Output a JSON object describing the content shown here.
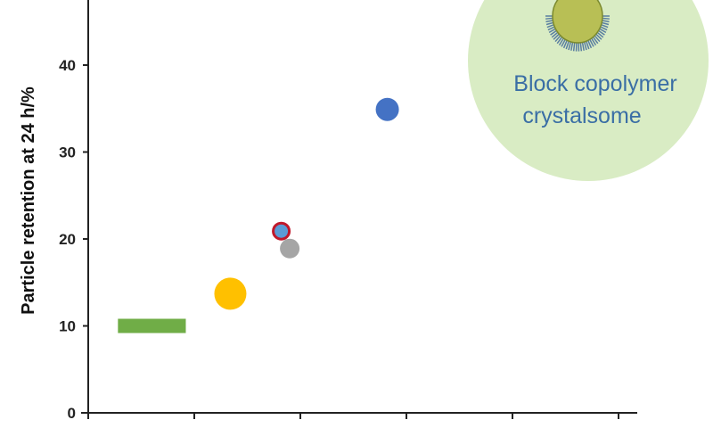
{
  "chart_data": {
    "type": "scatter",
    "title": "",
    "xlabel": "",
    "ylabel": "Particle retention at 24 h/%",
    "xlim": [
      0,
      27
    ],
    "ylim": [
      0,
      40
    ],
    "xticks": [
      0,
      5,
      10,
      15,
      20,
      25
    ],
    "yticks": [
      0,
      10,
      20,
      30,
      40
    ],
    "grid": false,
    "points": [
      {
        "x": 14.1,
        "y": 34.9,
        "color": "#4472c4",
        "shape": "circle"
      },
      {
        "x": 9.1,
        "y": 20.9,
        "color": "#5b9bd5",
        "edge_color": "#c0182a",
        "shape": "ringed-circle"
      },
      {
        "x": 9.5,
        "y": 18.9,
        "color": "#a5a5a5",
        "shape": "circle"
      },
      {
        "x": 6.7,
        "y": 13.7,
        "color": "#ffc000",
        "shape": "large-circle"
      }
    ],
    "bars": [
      {
        "x_start": 1.4,
        "x_end": 4.6,
        "y": 10,
        "color": "#70ad47",
        "shape": "horizontal-bar"
      }
    ],
    "annotation": {
      "text_line1": "Block copolymer",
      "text_line2": "crystalsome",
      "background_color": "#d9ecc4",
      "icon": "crystalsome-particle-icon"
    }
  }
}
